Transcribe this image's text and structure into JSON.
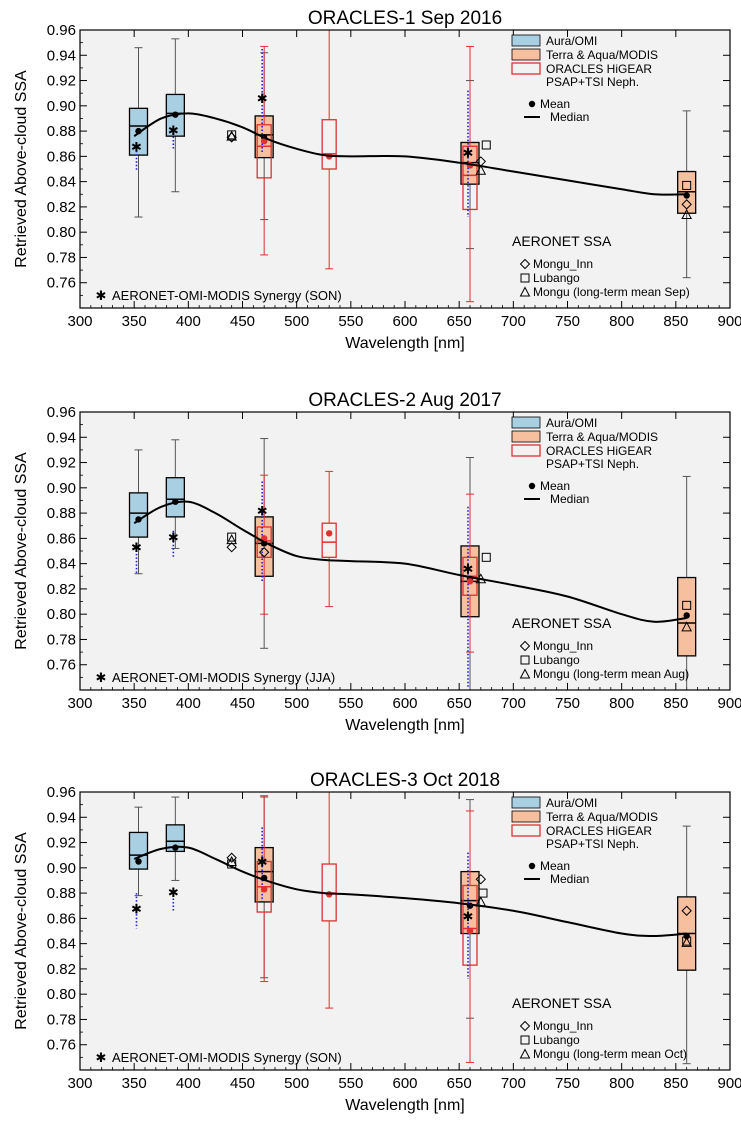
{
  "chart_data": [
    {
      "type": "box",
      "title": "ORACLES-1 Sep 2016",
      "xlabel": "Wavelength [nm]",
      "ylabel": "Retrieved Above-cloud SSA",
      "xlim": [
        300,
        900
      ],
      "ylim": [
        0.74,
        0.96
      ],
      "xticks": [
        300,
        350,
        400,
        450,
        500,
        550,
        600,
        650,
        700,
        750,
        800,
        850,
        900
      ],
      "yticks": [
        0.76,
        0.78,
        0.8,
        0.82,
        0.84,
        0.86,
        0.88,
        0.9,
        0.92,
        0.94,
        0.96
      ],
      "legend": {
        "entries": [
          {
            "label": "Aura/OMI",
            "color": "#a9cfe3"
          },
          {
            "label": "Terra & Aqua/MODIS",
            "color": "#f6bf9e"
          },
          {
            "label": "ORACLES HiGEAR",
            "label2": "PSAP+TSI Neph.",
            "color": "#e03030"
          }
        ],
        "mean_label": "Mean",
        "median_label": "Median",
        "aeronet_title": "AERONET SSA",
        "aeronet_entries": [
          "Mongu_Inn",
          "Lubango",
          "Mongu (long-term mean Sep)"
        ]
      },
      "synergy_label": "AERONET-OMI-MODIS Synergy (SON)",
      "omi_boxes": [
        {
          "x": 354,
          "q1": 0.861,
          "median": 0.884,
          "q3": 0.898,
          "whisker_low": 0.812,
          "whisker_high": 0.946,
          "mean": 0.88
        },
        {
          "x": 388,
          "q1": 0.876,
          "median": 0.894,
          "q3": 0.909,
          "whisker_low": 0.832,
          "whisker_high": 0.953,
          "mean": 0.893
        }
      ],
      "modis_boxes": [
        {
          "x": 470,
          "q1": 0.859,
          "median": 0.877,
          "q3": 0.892,
          "whisker_low": 0.81,
          "whisker_high": 0.942,
          "mean": 0.875
        },
        {
          "x": 660,
          "q1": 0.838,
          "median": 0.855,
          "q3": 0.871,
          "whisker_low": 0.787,
          "whisker_high": 0.92,
          "mean": 0.853
        },
        {
          "x": 860,
          "q1": 0.815,
          "median": 0.832,
          "q3": 0.848,
          "whisker_low": 0.764,
          "whisker_high": 0.896,
          "mean": 0.829
        }
      ],
      "hiGEAR_boxes": [
        {
          "x": 470,
          "q1": 0.843,
          "median": 0.868,
          "q3": 0.885,
          "whisker_low": 0.782,
          "whisker_high": 0.947,
          "mean": 0.872
        },
        {
          "x": 530,
          "q1": 0.85,
          "median": 0.862,
          "q3": 0.889,
          "whisker_low": 0.771,
          "whisker_high": 0.96,
          "mean": 0.86
        },
        {
          "x": 660,
          "q1": 0.818,
          "median": 0.845,
          "q3": 0.868,
          "whisker_low": 0.745,
          "whisker_high": 0.947,
          "mean": 0.853
        }
      ],
      "synergy_points": [
        {
          "x": 354,
          "y": 0.868,
          "spread_low": 0.848,
          "spread_high": 0.87
        },
        {
          "x": 388,
          "y": 0.881,
          "spread_low": 0.866,
          "spread_high": 0.884
        },
        {
          "x": 470,
          "y": 0.906,
          "spread_low": 0.863,
          "spread_high": 0.945
        },
        {
          "x": 660,
          "y": 0.863,
          "spread_low": 0.812,
          "spread_high": 0.912
        }
      ],
      "aeronet_points": {
        "mongu_inn": [
          {
            "x": 440,
            "y": 0.875
          },
          {
            "x": 670,
            "y": 0.856
          },
          {
            "x": 860,
            "y": 0.822
          }
        ],
        "lubango": [
          {
            "x": 440,
            "y": 0.877
          },
          {
            "x": 675,
            "y": 0.869
          },
          {
            "x": 860,
            "y": 0.837
          }
        ],
        "mongu_ltm": [
          {
            "x": 440,
            "y": 0.876
          },
          {
            "x": 670,
            "y": 0.849
          },
          {
            "x": 860,
            "y": 0.814
          }
        ]
      },
      "fit_curve": [
        [
          350,
          0.876
        ],
        [
          375,
          0.89
        ],
        [
          400,
          0.894
        ],
        [
          425,
          0.89
        ],
        [
          450,
          0.883
        ],
        [
          475,
          0.873
        ],
        [
          500,
          0.866
        ],
        [
          525,
          0.861
        ],
        [
          550,
          0.86
        ],
        [
          600,
          0.86
        ],
        [
          650,
          0.855
        ],
        [
          700,
          0.848
        ],
        [
          750,
          0.841
        ],
        [
          800,
          0.834
        ],
        [
          830,
          0.83
        ],
        [
          860,
          0.83
        ]
      ]
    },
    {
      "type": "box",
      "title": "ORACLES-2 Aug 2017",
      "xlabel": "Wavelength [nm]",
      "ylabel": "Retrieved Above-cloud SSA",
      "xlim": [
        300,
        900
      ],
      "ylim": [
        0.74,
        0.96
      ],
      "xticks": [
        300,
        350,
        400,
        450,
        500,
        550,
        600,
        650,
        700,
        750,
        800,
        850,
        900
      ],
      "yticks": [
        0.76,
        0.78,
        0.8,
        0.82,
        0.84,
        0.86,
        0.88,
        0.9,
        0.92,
        0.94,
        0.96
      ],
      "legend": {
        "entries": [
          {
            "label": "Aura/OMI",
            "color": "#a9cfe3"
          },
          {
            "label": "Terra & Aqua/MODIS",
            "color": "#f6bf9e"
          },
          {
            "label": "ORACLES HiGEAR",
            "label2": "PSAP+TSI Neph.",
            "color": "#e03030"
          }
        ],
        "mean_label": "Mean",
        "median_label": "Median",
        "aeronet_title": "AERONET SSA",
        "aeronet_entries": [
          "Mongu_Inn",
          "Lubango",
          "Mongu (long-term mean Aug)"
        ]
      },
      "synergy_label": "AERONET-OMI-MODIS Synergy (JJA)",
      "omi_boxes": [
        {
          "x": 354,
          "q1": 0.861,
          "median": 0.88,
          "q3": 0.896,
          "whisker_low": 0.832,
          "whisker_high": 0.93,
          "mean": 0.875
        },
        {
          "x": 388,
          "q1": 0.877,
          "median": 0.891,
          "q3": 0.908,
          "whisker_low": 0.852,
          "whisker_high": 0.938,
          "mean": 0.889
        }
      ],
      "modis_boxes": [
        {
          "x": 470,
          "q1": 0.83,
          "median": 0.856,
          "q3": 0.877,
          "whisker_low": 0.773,
          "whisker_high": 0.939,
          "mean": 0.856
        },
        {
          "x": 660,
          "q1": 0.798,
          "median": 0.826,
          "q3": 0.854,
          "whisker_low": 0.74,
          "whisker_high": 0.924,
          "mean": 0.828
        },
        {
          "x": 860,
          "q1": 0.767,
          "median": 0.793,
          "q3": 0.829,
          "whisker_low": 0.74,
          "whisker_high": 0.909,
          "mean": 0.799
        }
      ],
      "hiGEAR_boxes": [
        {
          "x": 470,
          "q1": 0.845,
          "median": 0.858,
          "q3": 0.869,
          "whisker_low": 0.8,
          "whisker_high": 0.91,
          "mean": 0.86
        },
        {
          "x": 530,
          "q1": 0.845,
          "median": 0.857,
          "q3": 0.872,
          "whisker_low": 0.806,
          "whisker_high": 0.913,
          "mean": 0.864
        },
        {
          "x": 660,
          "q1": 0.815,
          "median": 0.83,
          "q3": 0.845,
          "whisker_low": 0.77,
          "whisker_high": 0.895,
          "mean": 0.826
        }
      ],
      "synergy_points": [
        {
          "x": 354,
          "y": 0.853,
          "spread_low": 0.832,
          "spread_high": 0.856
        },
        {
          "x": 388,
          "y": 0.861,
          "spread_low": 0.844,
          "spread_high": 0.866
        },
        {
          "x": 470,
          "y": 0.882,
          "spread_low": 0.826,
          "spread_high": 0.905
        },
        {
          "x": 660,
          "y": 0.836,
          "spread_low": 0.742,
          "spread_high": 0.885
        }
      ],
      "aeronet_points": {
        "mongu_inn": [
          {
            "x": 440,
            "y": 0.853
          },
          {
            "x": 470,
            "y": 0.849
          }
        ],
        "lubango": [
          {
            "x": 440,
            "y": 0.861
          },
          {
            "x": 675,
            "y": 0.845
          },
          {
            "x": 860,
            "y": 0.807
          }
        ],
        "mongu_ltm": [
          {
            "x": 440,
            "y": 0.859
          },
          {
            "x": 670,
            "y": 0.828
          },
          {
            "x": 860,
            "y": 0.79
          }
        ]
      },
      "fit_curve": [
        [
          350,
          0.872
        ],
        [
          375,
          0.885
        ],
        [
          400,
          0.889
        ],
        [
          425,
          0.88
        ],
        [
          450,
          0.867
        ],
        [
          475,
          0.855
        ],
        [
          500,
          0.846
        ],
        [
          525,
          0.843
        ],
        [
          550,
          0.842
        ],
        [
          600,
          0.84
        ],
        [
          650,
          0.831
        ],
        [
          700,
          0.823
        ],
        [
          750,
          0.814
        ],
        [
          800,
          0.8
        ],
        [
          830,
          0.794
        ],
        [
          860,
          0.797
        ]
      ]
    },
    {
      "type": "box",
      "title": "ORACLES-3 Oct 2018",
      "xlabel": "Wavelength [nm]",
      "ylabel": "Retrieved Above-cloud SSA",
      "xlim": [
        300,
        900
      ],
      "ylim": [
        0.74,
        0.96
      ],
      "xticks": [
        300,
        350,
        400,
        450,
        500,
        550,
        600,
        650,
        700,
        750,
        800,
        850,
        900
      ],
      "yticks": [
        0.76,
        0.78,
        0.8,
        0.82,
        0.84,
        0.86,
        0.88,
        0.9,
        0.92,
        0.94,
        0.96
      ],
      "legend": {
        "entries": [
          {
            "label": "Aura/OMI",
            "color": "#a9cfe3"
          },
          {
            "label": "Terra & Aqua/MODIS",
            "color": "#f6bf9e"
          },
          {
            "label": "ORACLES HiGEAR",
            "label2": "PSAP+TSI Neph.",
            "color": "#e03030"
          }
        ],
        "mean_label": "Mean",
        "median_label": "Median",
        "aeronet_title": "AERONET SSA",
        "aeronet_entries": [
          "Mongu_Inn",
          "Lubango",
          "Mongu (long-term mean Oct)"
        ]
      },
      "synergy_label": "AERONET-OMI-MODIS Synergy (SON)",
      "omi_boxes": [
        {
          "x": 354,
          "q1": 0.899,
          "median": 0.91,
          "q3": 0.928,
          "whisker_low": 0.878,
          "whisker_high": 0.948,
          "mean": 0.905
        },
        {
          "x": 388,
          "q1": 0.913,
          "median": 0.921,
          "q3": 0.934,
          "whisker_low": 0.89,
          "whisker_high": 0.956,
          "mean": 0.916
        }
      ],
      "modis_boxes": [
        {
          "x": 470,
          "q1": 0.873,
          "median": 0.897,
          "q3": 0.916,
          "whisker_low": 0.813,
          "whisker_high": 0.957,
          "mean": 0.892
        },
        {
          "x": 660,
          "q1": 0.848,
          "median": 0.874,
          "q3": 0.897,
          "whisker_low": 0.781,
          "whisker_high": 0.954,
          "mean": 0.87
        },
        {
          "x": 860,
          "q1": 0.819,
          "median": 0.848,
          "q3": 0.877,
          "whisker_low": 0.745,
          "whisker_high": 0.933,
          "mean": 0.846
        }
      ],
      "hiGEAR_boxes": [
        {
          "x": 470,
          "q1": 0.865,
          "median": 0.885,
          "q3": 0.905,
          "whisker_low": 0.81,
          "whisker_high": 0.956,
          "mean": 0.883
        },
        {
          "x": 530,
          "q1": 0.858,
          "median": 0.88,
          "q3": 0.903,
          "whisker_low": 0.789,
          "whisker_high": 0.96,
          "mean": 0.879
        },
        {
          "x": 660,
          "q1": 0.823,
          "median": 0.852,
          "q3": 0.886,
          "whisker_low": 0.746,
          "whisker_high": 0.945,
          "mean": 0.85
        }
      ],
      "synergy_points": [
        {
          "x": 354,
          "y": 0.868,
          "spread_low": 0.852,
          "spread_high": 0.88
        },
        {
          "x": 388,
          "y": 0.881,
          "spread_low": 0.866,
          "spread_high": 0.884
        },
        {
          "x": 470,
          "y": 0.905,
          "spread_low": 0.873,
          "spread_high": 0.932
        },
        {
          "x": 660,
          "y": 0.862,
          "spread_low": 0.812,
          "spread_high": 0.912
        }
      ],
      "aeronet_points": {
        "mongu_inn": [
          {
            "x": 440,
            "y": 0.908
          },
          {
            "x": 670,
            "y": 0.891
          },
          {
            "x": 860,
            "y": 0.866
          }
        ],
        "lubango": [
          {
            "x": 440,
            "y": 0.903
          },
          {
            "x": 672,
            "y": 0.88
          },
          {
            "x": 860,
            "y": 0.842
          }
        ],
        "mongu_ltm": [
          {
            "x": 440,
            "y": 0.905
          },
          {
            "x": 670,
            "y": 0.873
          },
          {
            "x": 860,
            "y": 0.841
          }
        ]
      },
      "fit_curve": [
        [
          350,
          0.907
        ],
        [
          375,
          0.915
        ],
        [
          400,
          0.916
        ],
        [
          425,
          0.907
        ],
        [
          450,
          0.897
        ],
        [
          475,
          0.889
        ],
        [
          500,
          0.883
        ],
        [
          525,
          0.88
        ],
        [
          550,
          0.879
        ],
        [
          600,
          0.876
        ],
        [
          650,
          0.872
        ],
        [
          700,
          0.866
        ],
        [
          750,
          0.857
        ],
        [
          800,
          0.848
        ],
        [
          830,
          0.846
        ],
        [
          860,
          0.848
        ]
      ]
    }
  ],
  "colors": {
    "omi_fill": "#a9cfe3",
    "modis_fill": "#f6bf9e",
    "higear_stroke": "#e03030",
    "whisker": "#555555",
    "synergy_blue": "#1c1cd6",
    "plot_bg": "#f2f2f2"
  }
}
